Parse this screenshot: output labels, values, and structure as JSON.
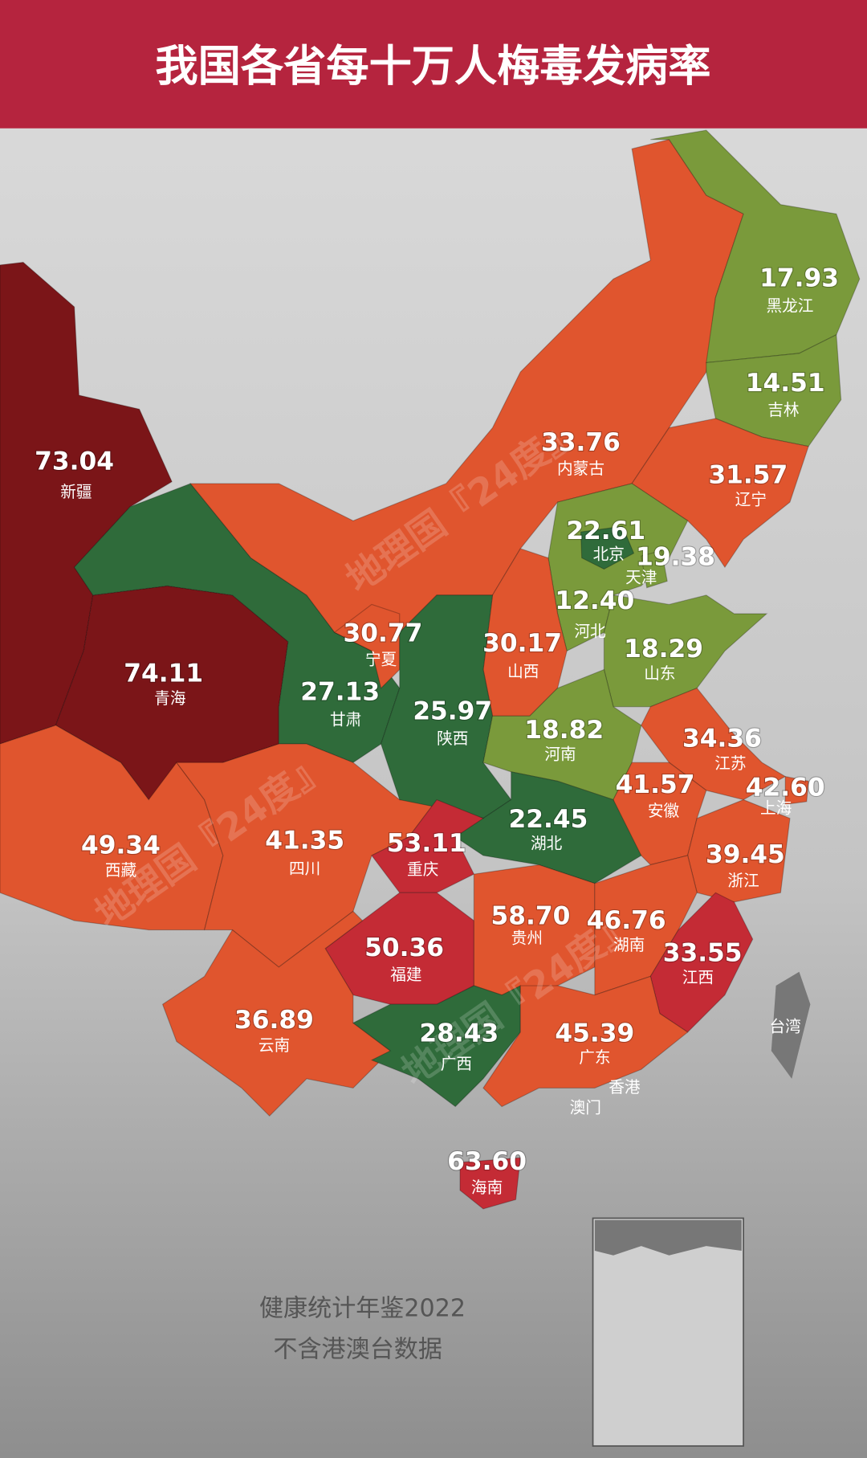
{
  "title": "我国各省每十万人梅毒发病率",
  "provinces": [
    {
      "name": "新疆",
      "value": 73.04,
      "color": "#7b1518"
    },
    {
      "name": "青海",
      "value": 74.11,
      "color": "#7b1518"
    },
    {
      "name": "甘肃",
      "value": 27.13,
      "color": "#2f6b3a"
    },
    {
      "name": "西藏",
      "value": 49.34,
      "color": "#e0552e"
    },
    {
      "name": "四川",
      "value": 41.35,
      "color": "#e0552e"
    },
    {
      "name": "内蒙古",
      "value": 33.76,
      "color": "#e0552e"
    },
    {
      "name": "黑龙江",
      "value": 17.93,
      "color": "#7a9a3b"
    },
    {
      "name": "吉林",
      "value": 14.51,
      "color": "#7a9a3b"
    },
    {
      "name": "辽宁",
      "value": 31.57,
      "color": "#e0552e"
    },
    {
      "name": "河北",
      "value": 12.4,
      "color": "#7a9a3b"
    },
    {
      "name": "北京",
      "value": 22.61,
      "color": "#2f6b3a"
    },
    {
      "name": "天津",
      "value": 19.38,
      "color": "#7a9a3b"
    },
    {
      "name": "山西",
      "value": 30.17,
      "color": "#e0552e"
    },
    {
      "name": "宁夏",
      "value": 30.77,
      "color": "#e0552e"
    },
    {
      "name": "陕西",
      "value": 25.97,
      "color": "#2f6b3a"
    },
    {
      "name": "山东",
      "value": 18.29,
      "color": "#7a9a3b"
    },
    {
      "name": "河南",
      "value": 18.82,
      "color": "#7a9a3b"
    },
    {
      "name": "江苏",
      "value": 34.36,
      "color": "#e0552e"
    },
    {
      "name": "上海",
      "value": 42.6,
      "color": "#e0552e"
    },
    {
      "name": "安徽",
      "value": 41.57,
      "color": "#e0552e"
    },
    {
      "name": "湖北",
      "value": 22.45,
      "color": "#2f6b3a"
    },
    {
      "name": "重庆",
      "value": 53.11,
      "color": "#c42b35"
    },
    {
      "name": "浙江",
      "value": 39.45,
      "color": "#e0552e"
    },
    {
      "name": "贵州",
      "value": 58.7,
      "color": "#c42b35"
    },
    {
      "name": "湖南",
      "value": 46.76,
      "color": "#e0552e"
    },
    {
      "name": "江西",
      "value": 33.55,
      "color": "#e0552e"
    },
    {
      "name": "福建",
      "value": 50.36,
      "color": "#c42b35"
    },
    {
      "name": "云南",
      "value": 36.89,
      "color": "#e0552e"
    },
    {
      "name": "广西",
      "value": 28.43,
      "color": "#2f6b3a"
    },
    {
      "name": "广东",
      "value": 45.39,
      "color": "#e0552e"
    },
    {
      "name": "海南",
      "value": 63.6,
      "color": "#c42b35"
    }
  ],
  "other_labels": {
    "taiwan": "台湾",
    "hongkong": "香港",
    "macau": "澳门"
  },
  "watermark": "地理国『24度』",
  "source": "健康统计年鉴2022",
  "note": "不含港澳台数据"
}
